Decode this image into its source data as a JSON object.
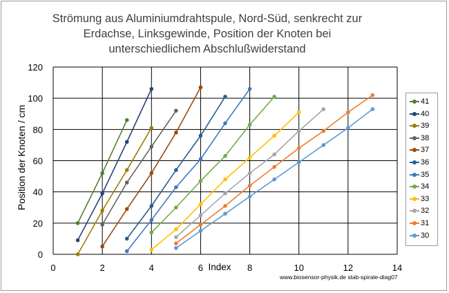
{
  "title_lines": [
    "Strömung aus Aluminiumdrahtspule,  Nord-Süd, senkrecht zur",
    "Erdachse, Linksgewinde, Position der Knoten bei",
    "unterschiedlichem Abschlußwiderstand"
  ],
  "footer": "www.biosensor-physik.de  stab-spirale-diag07",
  "chart_data": {
    "type": "line",
    "title": "Strömung aus Aluminiumdrahtspule,  Nord-Süd, senkrecht zur Erdachse, Linksgewinde, Position der Knoten bei unterschiedlichem Abschlußwiderstand",
    "xlabel": "Index",
    "ylabel": "Position der Knoten / cm",
    "xlim": [
      0,
      14
    ],
    "ylim": [
      0,
      120
    ],
    "xticks": [
      0,
      2,
      4,
      6,
      8,
      10,
      12,
      14
    ],
    "yticks": [
      0,
      20,
      40,
      60,
      80,
      100,
      120
    ],
    "grid": true,
    "legend_position": "right",
    "series": [
      {
        "name": "41",
        "color": "#507e32",
        "x": [
          1,
          2,
          3
        ],
        "y": [
          20,
          52,
          86
        ]
      },
      {
        "name": "40",
        "color": "#264478",
        "x": [
          1,
          2,
          3,
          4
        ],
        "y": [
          9,
          39,
          72,
          106
        ]
      },
      {
        "name": "39",
        "color": "#9e7d00",
        "x": [
          1,
          2,
          3,
          4
        ],
        "y": [
          0,
          28,
          54,
          81
        ]
      },
      {
        "name": "38",
        "color": "#636363",
        "x": [
          2,
          3,
          4,
          5
        ],
        "y": [
          19,
          46,
          69,
          92
        ]
      },
      {
        "name": "37",
        "color": "#9e480e",
        "x": [
          2,
          3,
          4,
          5,
          6
        ],
        "y": [
          5,
          29,
          52,
          78,
          107
        ]
      },
      {
        "name": "36",
        "color": "#255e91",
        "x": [
          3,
          4,
          5,
          6,
          7
        ],
        "y": [
          10,
          31,
          54,
          76,
          101
        ]
      },
      {
        "name": "35",
        "color": "#3f76c4",
        "x": [
          3,
          4,
          5,
          6,
          7,
          8
        ],
        "y": [
          2,
          22,
          43,
          61,
          84,
          106
        ]
      },
      {
        "name": "34",
        "color": "#70ad47",
        "x": [
          4,
          5,
          6,
          7,
          8,
          9
        ],
        "y": [
          14,
          30,
          47,
          63,
          83,
          101
        ]
      },
      {
        "name": "33",
        "color": "#ffc000",
        "x": [
          4,
          5,
          6,
          7,
          8,
          9,
          10
        ],
        "y": [
          3,
          16,
          32,
          48,
          62,
          76,
          91
        ]
      },
      {
        "name": "32",
        "color": "#a5a5a5",
        "x": [
          5,
          6,
          7,
          8,
          9,
          10,
          11
        ],
        "y": [
          11,
          25,
          39,
          52,
          64,
          79,
          93
        ]
      },
      {
        "name": "31",
        "color": "#ed7d31",
        "x": [
          5,
          6,
          7,
          8,
          9,
          10,
          11,
          12,
          13
        ],
        "y": [
          7,
          19,
          31,
          44,
          56,
          68,
          79,
          91,
          102
        ]
      },
      {
        "name": "30",
        "color": "#5b9bd5",
        "x": [
          5,
          6,
          7,
          8,
          9,
          10,
          11,
          12,
          13
        ],
        "y": [
          4,
          15,
          26,
          37,
          48,
          59,
          70,
          81,
          93
        ]
      }
    ]
  }
}
